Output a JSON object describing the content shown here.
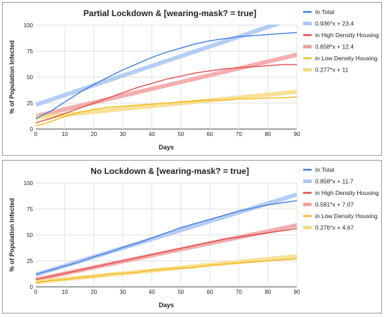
{
  "chart_data": [
    {
      "type": "line",
      "title": "Partial Lockdown & [wearing-mask? = true]",
      "xlabel": "Days",
      "ylabel": "% of Population Infected",
      "xlim": [
        0,
        90
      ],
      "ylim": [
        0,
        100
      ],
      "xticks": [
        0,
        10,
        20,
        30,
        40,
        50,
        60,
        70,
        80,
        90
      ],
      "yticks": [
        0,
        25,
        50,
        75,
        100
      ],
      "grid": true,
      "legend_position": "right",
      "series": [
        {
          "name": "In Total",
          "kind": "data",
          "color": "#3f7be0",
          "x": [
            0,
            5,
            10,
            15,
            20,
            25,
            30,
            35,
            40,
            45,
            50,
            55,
            60,
            65,
            70,
            75,
            80,
            85,
            90
          ],
          "y": [
            10,
            17,
            26,
            35,
            43,
            50,
            57,
            63,
            69,
            74,
            78,
            82,
            85,
            87,
            89,
            90,
            91,
            92,
            93
          ]
        },
        {
          "name": "0.936*x + 23.4",
          "kind": "trend",
          "color": "#a9c5f3",
          "slope": 0.936,
          "intercept": 23.4
        },
        {
          "name": "in High Density Housing",
          "kind": "data",
          "color": "#e04848",
          "x": [
            0,
            5,
            10,
            15,
            20,
            25,
            30,
            35,
            40,
            45,
            50,
            55,
            60,
            65,
            70,
            75,
            80,
            85,
            90
          ],
          "y": [
            6,
            10,
            15,
            20,
            25,
            30,
            35,
            40,
            44,
            48,
            51,
            54,
            56,
            58,
            59,
            60,
            61,
            62,
            62
          ]
        },
        {
          "name": "0.658*x + 12.4",
          "kind": "trend",
          "color": "#f2a1a1",
          "slope": 0.658,
          "intercept": 12.4
        },
        {
          "name": "in Low Density Housing",
          "kind": "data",
          "color": "#f2b61c",
          "x": [
            0,
            5,
            10,
            15,
            20,
            25,
            30,
            35,
            40,
            45,
            50,
            55,
            60,
            65,
            70,
            75,
            80,
            85,
            90
          ],
          "y": [
            3,
            7,
            12,
            16,
            19,
            21,
            22,
            23,
            24,
            25,
            26,
            27,
            28,
            28,
            29,
            29,
            30,
            30,
            31
          ]
        },
        {
          "name": "0.277*x + 11",
          "kind": "trend",
          "color": "#f7dc85",
          "slope": 0.277,
          "intercept": 11
        }
      ]
    },
    {
      "type": "line",
      "title": "No Lockdown & [wearing-mask? = true]",
      "xlabel": "Days",
      "ylabel": "% of Population Infected",
      "xlim": [
        0,
        90
      ],
      "ylim": [
        0,
        100
      ],
      "xticks": [
        0,
        10,
        20,
        30,
        40,
        50,
        60,
        70,
        80,
        90
      ],
      "yticks": [
        0,
        25,
        50,
        75,
        100
      ],
      "grid": true,
      "legend_position": "right",
      "series": [
        {
          "name": "In Total",
          "kind": "data",
          "color": "#3f7be0",
          "x": [
            0,
            5,
            10,
            15,
            20,
            25,
            30,
            35,
            40,
            45,
            50,
            55,
            60,
            65,
            70,
            75,
            80,
            85,
            90
          ],
          "y": [
            12,
            16,
            20,
            24,
            29,
            33,
            38,
            42,
            47,
            52,
            57,
            61,
            65,
            69,
            73,
            76,
            79,
            81,
            83
          ]
        },
        {
          "name": "0.858*x + 11.7",
          "kind": "trend",
          "color": "#a9c5f3",
          "slope": 0.858,
          "intercept": 11.7
        },
        {
          "name": "in High Density Housing",
          "kind": "data",
          "color": "#e04848",
          "x": [
            0,
            5,
            10,
            15,
            20,
            25,
            30,
            35,
            40,
            45,
            50,
            55,
            60,
            65,
            70,
            75,
            80,
            85,
            90
          ],
          "y": [
            7,
            10,
            13,
            16,
            19,
            22,
            25,
            28,
            31,
            34,
            37,
            40,
            43,
            46,
            48,
            50,
            52,
            54,
            56
          ]
        },
        {
          "name": "0.581*x + 7.07",
          "kind": "trend",
          "color": "#f2a1a1",
          "slope": 0.581,
          "intercept": 7.07
        },
        {
          "name": "in Low Density Housing",
          "kind": "data",
          "color": "#f2b61c",
          "x": [
            0,
            5,
            10,
            15,
            20,
            25,
            30,
            35,
            40,
            45,
            50,
            55,
            60,
            65,
            70,
            75,
            80,
            85,
            90
          ],
          "y": [
            4,
            6,
            7,
            9,
            10,
            12,
            13,
            14,
            16,
            17,
            18,
            19,
            21,
            22,
            23,
            24,
            25,
            26,
            27
          ]
        },
        {
          "name": "0.276*x + 4.67",
          "kind": "trend",
          "color": "#f7dc85",
          "slope": 0.276,
          "intercept": 4.67
        }
      ]
    }
  ]
}
